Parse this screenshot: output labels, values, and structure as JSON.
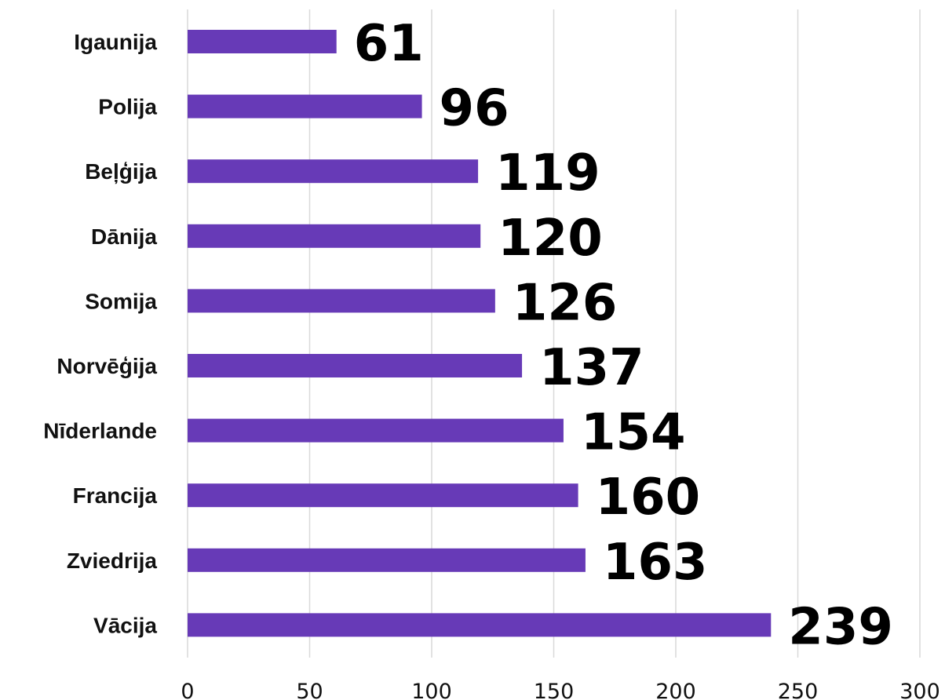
{
  "chart_data": {
    "type": "bar",
    "orientation": "horizontal",
    "categories": [
      "Igaunija",
      "Polija",
      "Beļģija",
      "Dānija",
      "Somija",
      "Norvēģija",
      "Nīderlande",
      "Francija",
      "Zviedrija",
      "Vācija"
    ],
    "values": [
      61,
      96,
      119,
      120,
      126,
      137,
      154,
      160,
      163,
      239
    ],
    "data_labels": [
      "61",
      "96",
      "119",
      "120",
      "126",
      "137",
      "154",
      "160",
      "163",
      "239"
    ],
    "x_ticks": [
      "0",
      "50",
      "100",
      "150",
      "200",
      "250",
      "300"
    ],
    "xlim": [
      0,
      300
    ],
    "title": "",
    "xlabel": "",
    "ylabel": "",
    "grid": "vertical",
    "legend": "none",
    "colors": {
      "bar": "#673ab7",
      "grid": "#d9d9d9",
      "text": "#000000"
    }
  }
}
